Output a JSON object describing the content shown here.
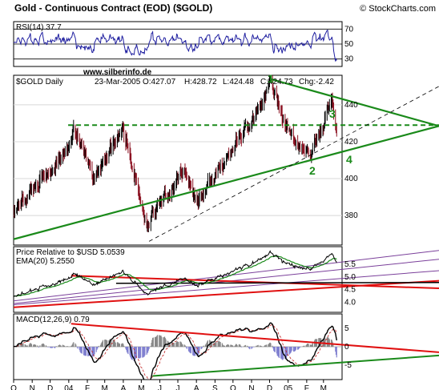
{
  "header": {
    "title": "Gold - Continuous Contract (EOD) ($GOLD)",
    "source": "© StockCharts.com"
  },
  "colors": {
    "price_up": "#000000",
    "price_down": "#8b1020",
    "green": "#1a8a1a",
    "red": "#e01010",
    "purple": "#7a3f9a",
    "rsi": "#2020a0",
    "histogram": "#8080d0"
  },
  "chart_data": [
    {
      "panel": "rsi",
      "type": "line",
      "label": "RSI(14) 37.7",
      "ylim": [
        20,
        80
      ],
      "yticks": [
        30,
        50,
        70
      ],
      "last_value": 37.7
    },
    {
      "panel": "price",
      "type": "candlestick",
      "label": "$GOLD Daily",
      "watermark": "www.silberinfo.de",
      "info": {
        "date": "23-Mar-2005",
        "open": "O:427.07",
        "high": "H:428.72",
        "low": "L:424.48",
        "close": "C:424.73",
        "change": "Chg:-2.42"
      },
      "ylim": [
        364,
        456
      ],
      "yticks": [
        380,
        400,
        420,
        440
      ],
      "key_points": [
        {
          "date": "2003-09-29",
          "value": 382
        },
        {
          "date": "2003-12-31",
          "value": 416
        },
        {
          "date": "2004-01-09",
          "value": 428
        },
        {
          "date": "2004-02-10",
          "value": 400
        },
        {
          "date": "2004-03-31",
          "value": 428
        },
        {
          "date": "2004-05-10",
          "value": 375
        },
        {
          "date": "2004-06-21",
          "value": 395
        },
        {
          "date": "2004-07-12",
          "value": 405
        },
        {
          "date": "2004-08-02",
          "value": 387
        },
        {
          "date": "2004-09-29",
          "value": 415
        },
        {
          "date": "2004-11-15",
          "value": 438
        },
        {
          "date": "2004-12-02",
          "value": 455
        },
        {
          "date": "2004-12-20",
          "value": 437
        },
        {
          "date": "2005-01-10",
          "value": 420
        },
        {
          "date": "2005-02-08",
          "value": 412
        },
        {
          "date": "2005-03-15",
          "value": 443
        },
        {
          "date": "2005-03-23",
          "value": 424.73
        }
      ],
      "lines": [
        {
          "style": "dashed",
          "color": "green",
          "value": 429
        },
        {
          "style": "solid",
          "color": "green",
          "kind": "triangle-upper"
        },
        {
          "style": "solid",
          "color": "green",
          "kind": "triangle-lower"
        },
        {
          "style": "dashed",
          "color": "black",
          "kind": "channel"
        }
      ],
      "annotations": [
        "1",
        "2",
        "3",
        "4"
      ]
    },
    {
      "panel": "relative",
      "type": "line",
      "label": "Price Relative to $USD 5.0539",
      "label2": "EMA(20) 5.2550",
      "ylim": [
        3.6,
        6.2
      ],
      "yticks": [
        4.0,
        4.5,
        5.0,
        5.5
      ],
      "ytick_labels": [
        "4.0",
        "4.5",
        "5.0",
        "5.5"
      ],
      "last_value": 5.0539,
      "ema_value": 5.255
    },
    {
      "panel": "macd",
      "type": "line",
      "label": "MACD(12,26,9) 0.79",
      "ylim": [
        -9,
        9
      ],
      "yticks": [
        -5,
        0,
        5
      ],
      "ytick_labels": [
        "-5",
        "0",
        "5"
      ],
      "last_value": 0.79
    }
  ],
  "x_axis": {
    "labels": [
      "O",
      "N",
      "D",
      "04",
      "F",
      "M",
      "A",
      "M",
      "J",
      "J",
      "A",
      "S",
      "O",
      "N",
      "D",
      "05",
      "F",
      "M"
    ]
  }
}
